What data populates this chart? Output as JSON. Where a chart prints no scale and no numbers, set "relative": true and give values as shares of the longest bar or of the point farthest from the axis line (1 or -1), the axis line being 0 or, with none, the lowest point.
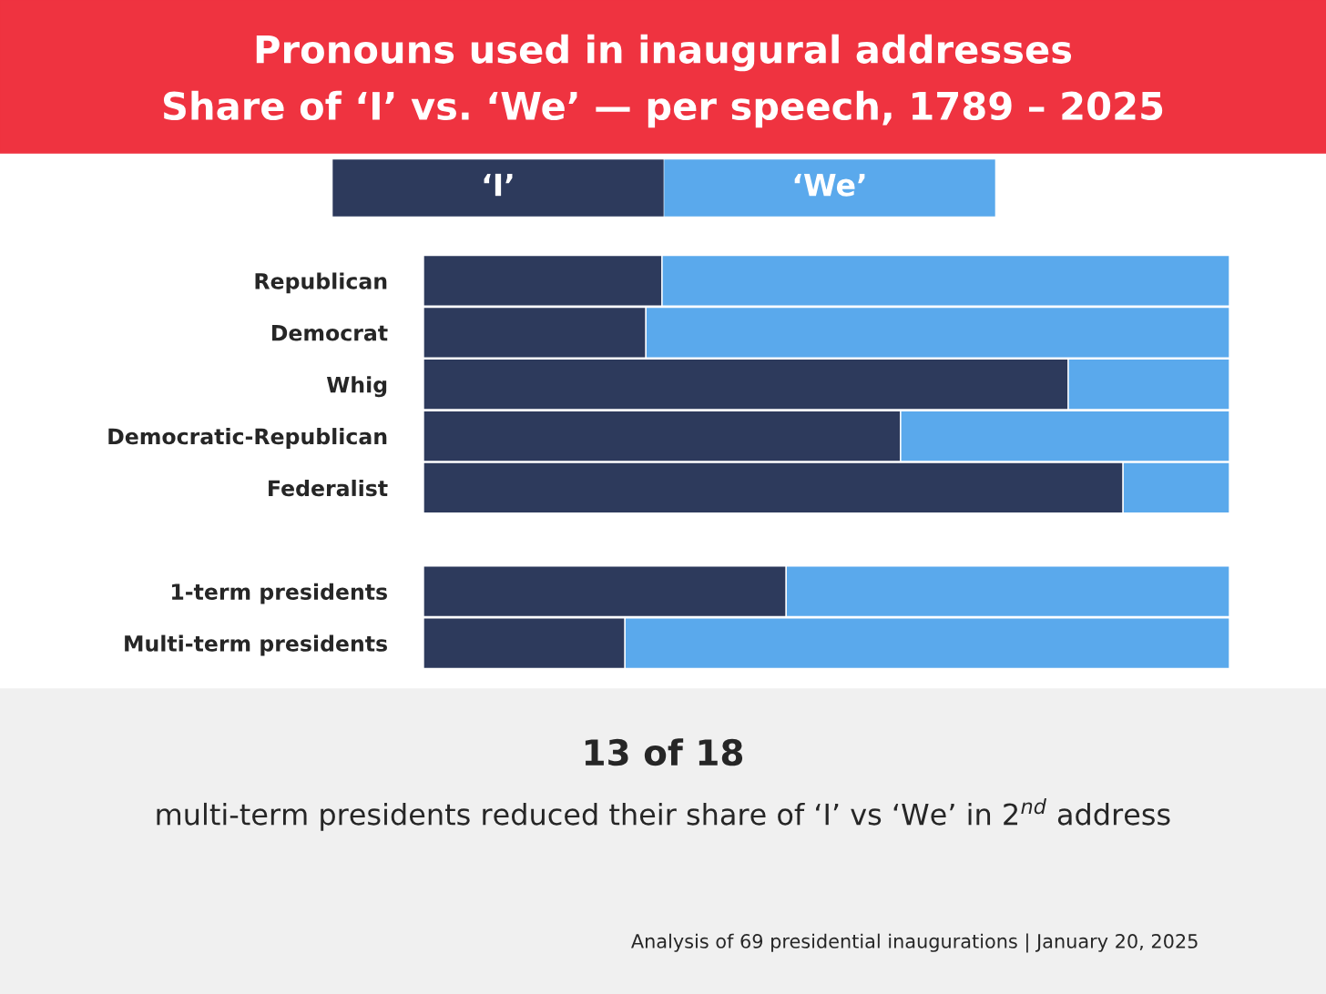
{
  "chart_data": {
    "type": "bar",
    "orientation": "horizontal",
    "stacked": true,
    "relative": true,
    "title": "Pronouns used in inaugural addresses",
    "subtitle": "Share of ‘I’ vs. ‘We’ — per speech, 1789 – 2025",
    "categories": [
      "Republican",
      "Democrat",
      "Whig",
      "Democratic-Republican",
      "Federalist",
      null,
      "1-term presidents",
      "Multi-term presidents"
    ],
    "series": [
      {
        "name": "‘I’",
        "color": "#2d3a5c",
        "values": [
          0.296,
          0.276,
          0.8,
          0.592,
          0.868,
          null,
          0.45,
          0.25
        ]
      },
      {
        "name": "‘We’",
        "color": "#5aa9ec",
        "values": [
          0.704,
          0.724,
          0.2,
          0.408,
          0.132,
          null,
          0.55,
          0.75
        ]
      }
    ],
    "legend": "top",
    "annotations": [
      "13 of 18",
      "multi-term presidents reduced their share of ‘I’ vs ‘We’ in 2$^{nd}$ address",
      "Analysis of 69 presidential inaugurations | January 20, 2025"
    ]
  }
}
